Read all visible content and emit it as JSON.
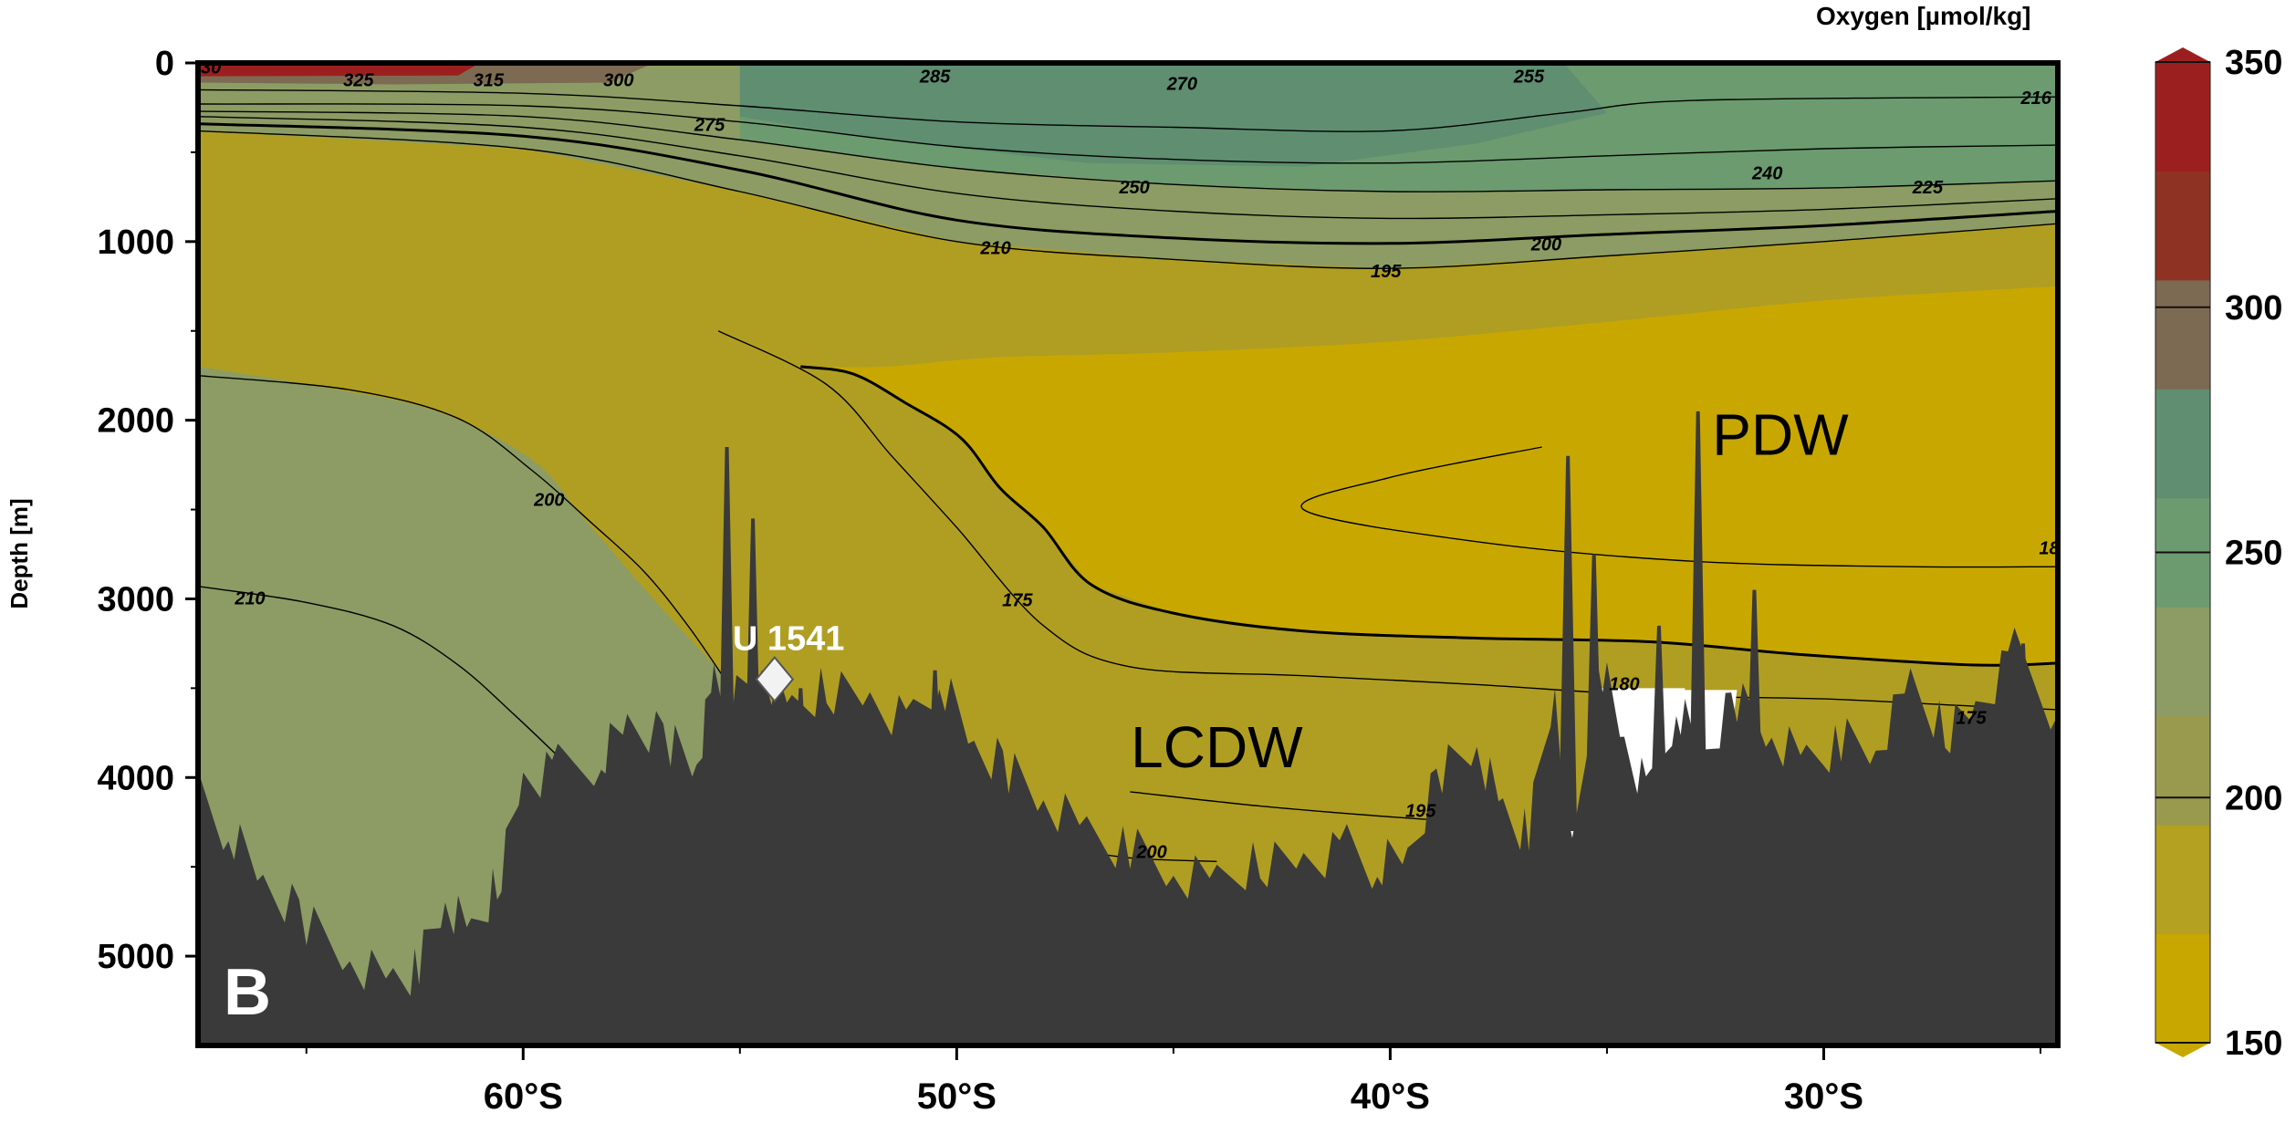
{
  "chart_data": {
    "type": "heatmap",
    "panel_label": "B",
    "colorbar": {
      "title": "Oxygen [µmol/kg]",
      "range": [
        150,
        350
      ],
      "ticks": [
        "350",
        "300",
        "250",
        "200",
        "150"
      ],
      "colors": [
        "#c8a800",
        "#b4a021",
        "#9a9a4e",
        "#8c9c64",
        "#6b9b6e",
        "#5f8e71",
        "#7d6a52",
        "#8e3324",
        "#9c1f1f"
      ]
    },
    "x_axis": {
      "ticks": [
        "60°S",
        "50°S",
        "40°S",
        "30°S"
      ],
      "tick_values": [
        -60,
        -50,
        -40,
        -30
      ],
      "range": [
        -67.5,
        -24.6
      ]
    },
    "y_axis": {
      "label": "Depth [m]",
      "ticks": [
        "0",
        "1000",
        "2000",
        "3000",
        "4000",
        "5000"
      ],
      "tick_values": [
        0,
        1000,
        2000,
        3000,
        4000,
        5000
      ],
      "range": [
        0,
        5500
      ]
    },
    "water_masses": [
      {
        "name": "PDW",
        "lat": -31,
        "depth": 2080
      },
      {
        "name": "LCDW",
        "lat": -44,
        "depth": 3830
      }
    ],
    "site": {
      "name": "U 1541",
      "lat": -54.2,
      "depth": 3450
    },
    "contour_labels": [
      {
        "text": "30",
        "lat": -67.2,
        "depth": 60
      },
      {
        "text": "325",
        "lat": -63.8,
        "depth": 130
      },
      {
        "text": "315",
        "lat": -60.8,
        "depth": 130
      },
      {
        "text": "300",
        "lat": -57.8,
        "depth": 130
      },
      {
        "text": "285",
        "lat": -50.5,
        "depth": 110
      },
      {
        "text": "270",
        "lat": -44.8,
        "depth": 150
      },
      {
        "text": "255",
        "lat": -36.8,
        "depth": 110
      },
      {
        "text": "275",
        "lat": -55.7,
        "depth": 380
      },
      {
        "text": "216",
        "lat": -25.1,
        "depth": 230
      },
      {
        "text": "240",
        "lat": -31.3,
        "depth": 650
      },
      {
        "text": "250",
        "lat": -45.9,
        "depth": 730
      },
      {
        "text": "225",
        "lat": -27.6,
        "depth": 730
      },
      {
        "text": "210",
        "lat": -49.1,
        "depth": 1070
      },
      {
        "text": "200",
        "lat": -36.4,
        "depth": 1050
      },
      {
        "text": "195",
        "lat": -40.1,
        "depth": 1200
      },
      {
        "text": "200",
        "lat": -59.4,
        "depth": 2480
      },
      {
        "text": "210",
        "lat": -66.3,
        "depth": 3030
      },
      {
        "text": "175",
        "lat": -48.6,
        "depth": 3040
      },
      {
        "text": "180",
        "lat": -34.6,
        "depth": 3510
      },
      {
        "text": "18",
        "lat": -24.8,
        "depth": 2750
      },
      {
        "text": "175",
        "lat": -26.6,
        "depth": 3700
      },
      {
        "text": "195",
        "lat": -39.3,
        "depth": 4220
      },
      {
        "text": "200",
        "lat": -45.5,
        "depth": 4450
      }
    ],
    "seafloor_depth": [
      [
        -67.5,
        4100
      ],
      [
        -66.8,
        4300
      ],
      [
        -66,
        4600
      ],
      [
        -65,
        4800
      ],
      [
        -64,
        5000
      ],
      [
        -63,
        5150
      ],
      [
        -62.4,
        5050
      ],
      [
        -61.8,
        4700
      ],
      [
        -61.2,
        4900
      ],
      [
        -60.6,
        4600
      ],
      [
        -60,
        4000
      ],
      [
        -59.2,
        3950
      ],
      [
        -58.2,
        3900
      ],
      [
        -57.6,
        3700
      ],
      [
        -56.6,
        3800
      ],
      [
        -56,
        3900
      ],
      [
        -55.6,
        3450
      ],
      [
        -55.2,
        3600
      ],
      [
        -54.5,
        3400
      ],
      [
        -53.8,
        3650
      ],
      [
        -53,
        3500
      ],
      [
        -52,
        3550
      ],
      [
        -51,
        3700
      ],
      [
        -50.4,
        3450
      ],
      [
        -49.6,
        3850
      ],
      [
        -48.8,
        3950
      ],
      [
        -48,
        4100
      ],
      [
        -47,
        4300
      ],
      [
        -46,
        4400
      ],
      [
        -45,
        4550
      ],
      [
        -44,
        4600
      ],
      [
        -43,
        4480
      ],
      [
        -42,
        4450
      ],
      [
        -41,
        4400
      ],
      [
        -40.3,
        4500
      ],
      [
        -39.6,
        4450
      ],
      [
        -38.8,
        3950
      ],
      [
        -38,
        3800
      ],
      [
        -37.4,
        4200
      ],
      [
        -36.8,
        4300
      ],
      [
        -36.2,
        3500
      ],
      [
        -35.8,
        4450
      ],
      [
        -35.2,
        3300
      ],
      [
        -34.6,
        3800
      ],
      [
        -34,
        4100
      ],
      [
        -33.4,
        3600
      ],
      [
        -32.8,
        3900
      ],
      [
        -32,
        3550
      ],
      [
        -31.2,
        3750
      ],
      [
        -30.4,
        3900
      ],
      [
        -29.6,
        3800
      ],
      [
        -28.8,
        3850
      ],
      [
        -28,
        3500
      ],
      [
        -27.2,
        3750
      ],
      [
        -26.5,
        3600
      ],
      [
        -25.6,
        3300
      ],
      [
        -24.6,
        3650
      ]
    ],
    "peaks": [
      [
        -55.3,
        2150
      ],
      [
        -54.7,
        2550
      ],
      [
        -53.6,
        3500
      ],
      [
        -50.5,
        3400
      ],
      [
        -35.9,
        2200
      ],
      [
        -35.3,
        2750
      ],
      [
        -33.8,
        3150
      ],
      [
        -32.9,
        1950
      ],
      [
        -31.6,
        2950
      ],
      [
        -25.4,
        3250
      ]
    ],
    "fill_contours": [
      {
        "level": 225,
        "depth": [
          [
            -67.5,
            1700
          ],
          [
            -64.5,
            1820
          ],
          [
            -62,
            1950
          ],
          [
            -59.8,
            2220
          ],
          [
            -58.6,
            2550
          ],
          [
            -57,
            3000
          ],
          [
            -55.4,
            3420
          ]
        ]
      },
      {
        "level": 200,
        "depth": [
          [
            -67.5,
            1280
          ],
          [
            -63,
            1420
          ],
          [
            -59,
            1540
          ],
          [
            -55,
            1620
          ],
          [
            -53.2,
            1700
          ],
          [
            -51.6,
            1700
          ],
          [
            -49.2,
            1650
          ],
          [
            -45,
            1620
          ],
          [
            -40,
            1560
          ],
          [
            -35,
            1450
          ],
          [
            -30,
            1330
          ],
          [
            -24.6,
            1250
          ]
        ]
      },
      {
        "level": 185,
        "depth": [
          [
            -53.6,
            1700
          ],
          [
            -52.4,
            1740
          ],
          [
            -51.2,
            1900
          ],
          [
            -49.9,
            2100
          ],
          [
            -49,
            2380
          ],
          [
            -48,
            2600
          ],
          [
            -46.9,
            2920
          ],
          [
            -45,
            3080
          ],
          [
            -42,
            3180
          ],
          [
            -38,
            3220
          ],
          [
            -34,
            3240
          ],
          [
            -30.6,
            3310
          ],
          [
            -26.6,
            3370
          ],
          [
            -24.6,
            3360
          ]
        ]
      },
      {
        "level": 270,
        "depth": [
          [
            -55,
            200
          ],
          [
            -53,
            270
          ],
          [
            -50,
            380
          ],
          [
            -47,
            440
          ],
          [
            -44,
            460
          ],
          [
            -40,
            450
          ],
          [
            -38,
            330
          ],
          [
            -39.5,
            180
          ],
          [
            -43,
            140
          ],
          [
            -48,
            120
          ],
          [
            -53,
            110
          ],
          [
            -55,
            200
          ]
        ]
      }
    ],
    "contour_lines": [
      {
        "style": "thin",
        "depth": [
          [
            -67.5,
            150
          ],
          [
            -60,
            170
          ],
          [
            -55,
            240
          ],
          [
            -50,
            330
          ],
          [
            -45,
            360
          ],
          [
            -40,
            380
          ],
          [
            -36,
            280
          ],
          [
            -33,
            210
          ],
          [
            -24.6,
            190
          ]
        ]
      },
      {
        "style": "thin",
        "depth": [
          [
            -67.5,
            230
          ],
          [
            -60,
            240
          ],
          [
            -55,
            330
          ],
          [
            -50,
            470
          ],
          [
            -45,
            540
          ],
          [
            -40,
            560
          ],
          [
            -35,
            520
          ],
          [
            -30,
            480
          ],
          [
            -24.6,
            460
          ]
        ]
      },
      {
        "style": "thin",
        "depth": [
          [
            -67.5,
            270
          ],
          [
            -60,
            300
          ],
          [
            -55,
            430
          ],
          [
            -50,
            590
          ],
          [
            -45,
            680
          ],
          [
            -40,
            720
          ],
          [
            -35,
            710
          ],
          [
            -30,
            700
          ],
          [
            -24.6,
            660
          ]
        ]
      },
      {
        "style": "thin",
        "depth": [
          [
            -67.5,
            300
          ],
          [
            -60,
            360
          ],
          [
            -55,
            520
          ],
          [
            -50,
            730
          ],
          [
            -45,
            830
          ],
          [
            -40,
            870
          ],
          [
            -35,
            850
          ],
          [
            -30,
            820
          ],
          [
            -24.6,
            760
          ]
        ]
      },
      {
        "style": "thick",
        "depth": [
          [
            -67.5,
            340
          ],
          [
            -60,
            410
          ],
          [
            -55,
            600
          ],
          [
            -50,
            880
          ],
          [
            -45,
            980
          ],
          [
            -40,
            1010
          ],
          [
            -35,
            960
          ],
          [
            -30,
            910
          ],
          [
            -24.6,
            830
          ]
        ]
      },
      {
        "style": "thin",
        "depth": [
          [
            -67.5,
            380
          ],
          [
            -60,
            480
          ],
          [
            -55,
            720
          ],
          [
            -50,
            1000
          ],
          [
            -45,
            1100
          ],
          [
            -40,
            1150
          ],
          [
            -35,
            1080
          ],
          [
            -30,
            1000
          ],
          [
            -24.6,
            900
          ]
        ]
      },
      {
        "style": "thin",
        "depth": [
          [
            -67.5,
            1750
          ],
          [
            -64,
            1830
          ],
          [
            -61.5,
            1990
          ],
          [
            -59.8,
            2280
          ],
          [
            -58.4,
            2580
          ],
          [
            -57.2,
            2850
          ],
          [
            -56.2,
            3150
          ],
          [
            -55.4,
            3430
          ]
        ]
      },
      {
        "style": "thin",
        "depth": [
          [
            -67.5,
            2930
          ],
          [
            -65,
            3020
          ],
          [
            -63,
            3150
          ],
          [
            -61.5,
            3370
          ],
          [
            -60.2,
            3650
          ],
          [
            -59.2,
            3880
          ]
        ]
      },
      {
        "style": "thick",
        "depth": [
          [
            -53.6,
            1700
          ],
          [
            -52.4,
            1740
          ],
          [
            -51.2,
            1900
          ],
          [
            -49.9,
            2100
          ],
          [
            -49,
            2380
          ],
          [
            -48,
            2600
          ],
          [
            -46.9,
            2920
          ],
          [
            -45,
            3080
          ],
          [
            -42,
            3180
          ],
          [
            -38,
            3220
          ],
          [
            -34,
            3240
          ],
          [
            -30.6,
            3310
          ],
          [
            -26.6,
            3370
          ],
          [
            -24.6,
            3360
          ]
        ]
      },
      {
        "style": "thin",
        "depth": [
          [
            -55.5,
            1500
          ],
          [
            -53,
            1800
          ],
          [
            -51.5,
            2200
          ],
          [
            -50,
            2600
          ],
          [
            -48,
            3150
          ],
          [
            -46,
            3380
          ],
          [
            -42,
            3430
          ],
          [
            -38,
            3480
          ],
          [
            -34,
            3540
          ],
          [
            -30,
            3560
          ],
          [
            -26.6,
            3600
          ],
          [
            -24.6,
            3620
          ]
        ]
      },
      {
        "style": "thin",
        "depth": [
          [
            -36.5,
            2150
          ],
          [
            -40,
            2320
          ],
          [
            -42,
            2500
          ],
          [
            -38,
            2680
          ],
          [
            -33,
            2790
          ],
          [
            -28,
            2820
          ],
          [
            -24.6,
            2820
          ]
        ]
      },
      {
        "style": "thin",
        "depth": [
          [
            -46,
            4080
          ],
          [
            -43,
            4160
          ],
          [
            -40,
            4220
          ],
          [
            -37.5,
            4260
          ]
        ]
      },
      {
        "style": "thin",
        "depth": [
          [
            -51,
            4300
          ],
          [
            -48,
            4380
          ],
          [
            -46,
            4450
          ],
          [
            -44,
            4470
          ]
        ]
      }
    ]
  }
}
